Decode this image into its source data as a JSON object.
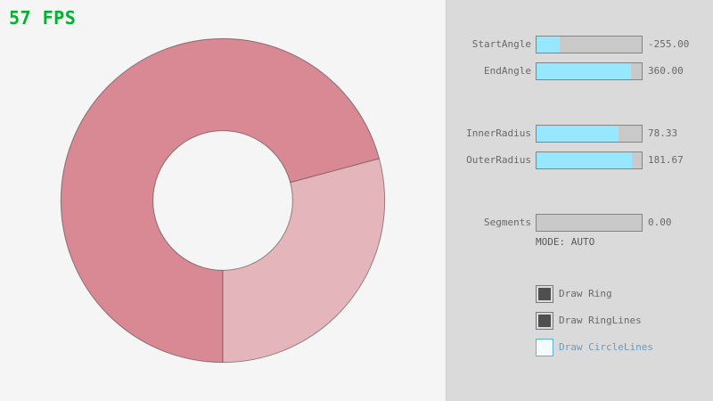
{
  "fps_label": "57 FPS",
  "ring": {
    "start_angle": -255.0,
    "end_angle": 360.0,
    "inner_radius": 78.33,
    "outer_radius": 181.67,
    "colors": {
      "overlap_fill": "#d98994",
      "single_fill": "#e5b5bc",
      "outline": "rgba(0,0,0,0.4)"
    }
  },
  "panel": {
    "sliders": [
      {
        "label": "StartAngle",
        "value": "-255.00",
        "fill_pct": 21.7
      },
      {
        "label": "EndAngle",
        "value": "360.00",
        "fill_pct": 90.0
      },
      {
        "label": "InnerRadius",
        "value": "78.33",
        "fill_pct": 78.3
      },
      {
        "label": "OuterRadius",
        "value": "181.67",
        "fill_pct": 90.8
      },
      {
        "label": "Segments",
        "value": "0.00",
        "fill_pct": 0
      }
    ],
    "mode_label": "MODE: AUTO",
    "checkboxes": [
      {
        "label": "Draw Ring",
        "checked": true,
        "focused": false
      },
      {
        "label": "Draw RingLines",
        "checked": true,
        "focused": false
      },
      {
        "label": "Draw CircleLines",
        "checked": false,
        "focused": true
      }
    ]
  },
  "colors": {
    "background": "#f5f5f5",
    "panel_background": "#dadada",
    "slider_track": "#c9c9c9",
    "slider_fill": "#97e8ff",
    "slider_border": "#838383",
    "label_text": "#686868",
    "fps_text": "#00b32f",
    "checkbox_check": "#4f4f4f",
    "focus_border": "#5bb2d9",
    "focus_text": "#6c9bbc"
  }
}
